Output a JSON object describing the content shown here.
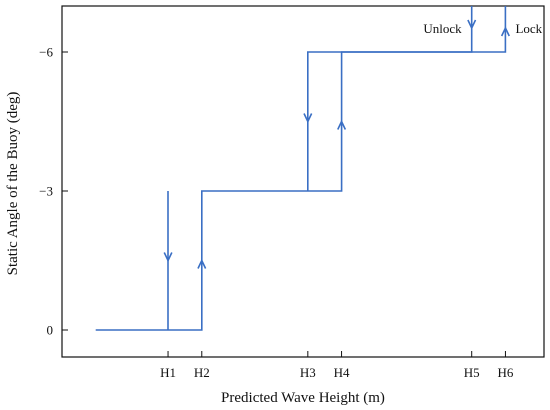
{
  "colors": {
    "line": "#3a6fc4",
    "axis": "#111111",
    "background": "#ffffff"
  },
  "chart_data": {
    "type": "line",
    "title": "",
    "xlabel": "Predicted Wave Height (m)",
    "ylabel": "Static Angle of the Buoy (deg)",
    "y_inverted": true,
    "ylim": [
      1.0,
      -7.0
    ],
    "xlim": [
      0.0,
      10.0
    ],
    "x_ticks": [
      {
        "label": "H1",
        "value": 2.2
      },
      {
        "label": "H2",
        "value": 2.9
      },
      {
        "label": "H3",
        "value": 5.1
      },
      {
        "label": "H4",
        "value": 5.8
      },
      {
        "label": "H5",
        "value": 8.5
      },
      {
        "label": "H6",
        "value": 9.2
      }
    ],
    "y_ticks": [
      {
        "label": "0",
        "value": 0
      },
      {
        "label": "−3",
        "value": -3
      },
      {
        "label": "−6",
        "value": -6
      }
    ],
    "series": [
      {
        "points": [
          {
            "x": 0.7,
            "y": 0
          },
          {
            "x": 2.9,
            "y": 0
          },
          {
            "x": 2.9,
            "y": -3
          },
          {
            "x": 5.8,
            "y": -3
          },
          {
            "x": 5.8,
            "y": -6
          },
          {
            "x": 9.2,
            "y": -6
          },
          {
            "x": 9.2,
            "y": -7
          }
        ]
      },
      {
        "points": [
          {
            "x": 2.2,
            "y": 0
          },
          {
            "x": 2.2,
            "y": -3
          }
        ]
      },
      {
        "points": [
          {
            "x": 5.1,
            "y": -3
          },
          {
            "x": 5.1,
            "y": -6
          },
          {
            "x": 8.5,
            "y": -6
          },
          {
            "x": 8.5,
            "y": -7
          }
        ]
      }
    ],
    "arrows": [
      {
        "x": 2.2,
        "y": -1.5,
        "direction": "down"
      },
      {
        "x": 2.9,
        "y": -1.5,
        "direction": "up"
      },
      {
        "x": 5.1,
        "y": -4.5,
        "direction": "down"
      },
      {
        "x": 5.8,
        "y": -4.5,
        "direction": "up"
      },
      {
        "x": 8.5,
        "y": -6.5,
        "direction": "down"
      },
      {
        "x": 9.2,
        "y": -6.5,
        "direction": "up"
      }
    ],
    "annotations": [
      {
        "text": "Unlock",
        "x": 8.5,
        "y": -6.5,
        "anchor": "left-of"
      },
      {
        "text": "Lock",
        "x": 9.2,
        "y": -6.5,
        "anchor": "right-of"
      }
    ],
    "grid": false,
    "legend": "none"
  }
}
